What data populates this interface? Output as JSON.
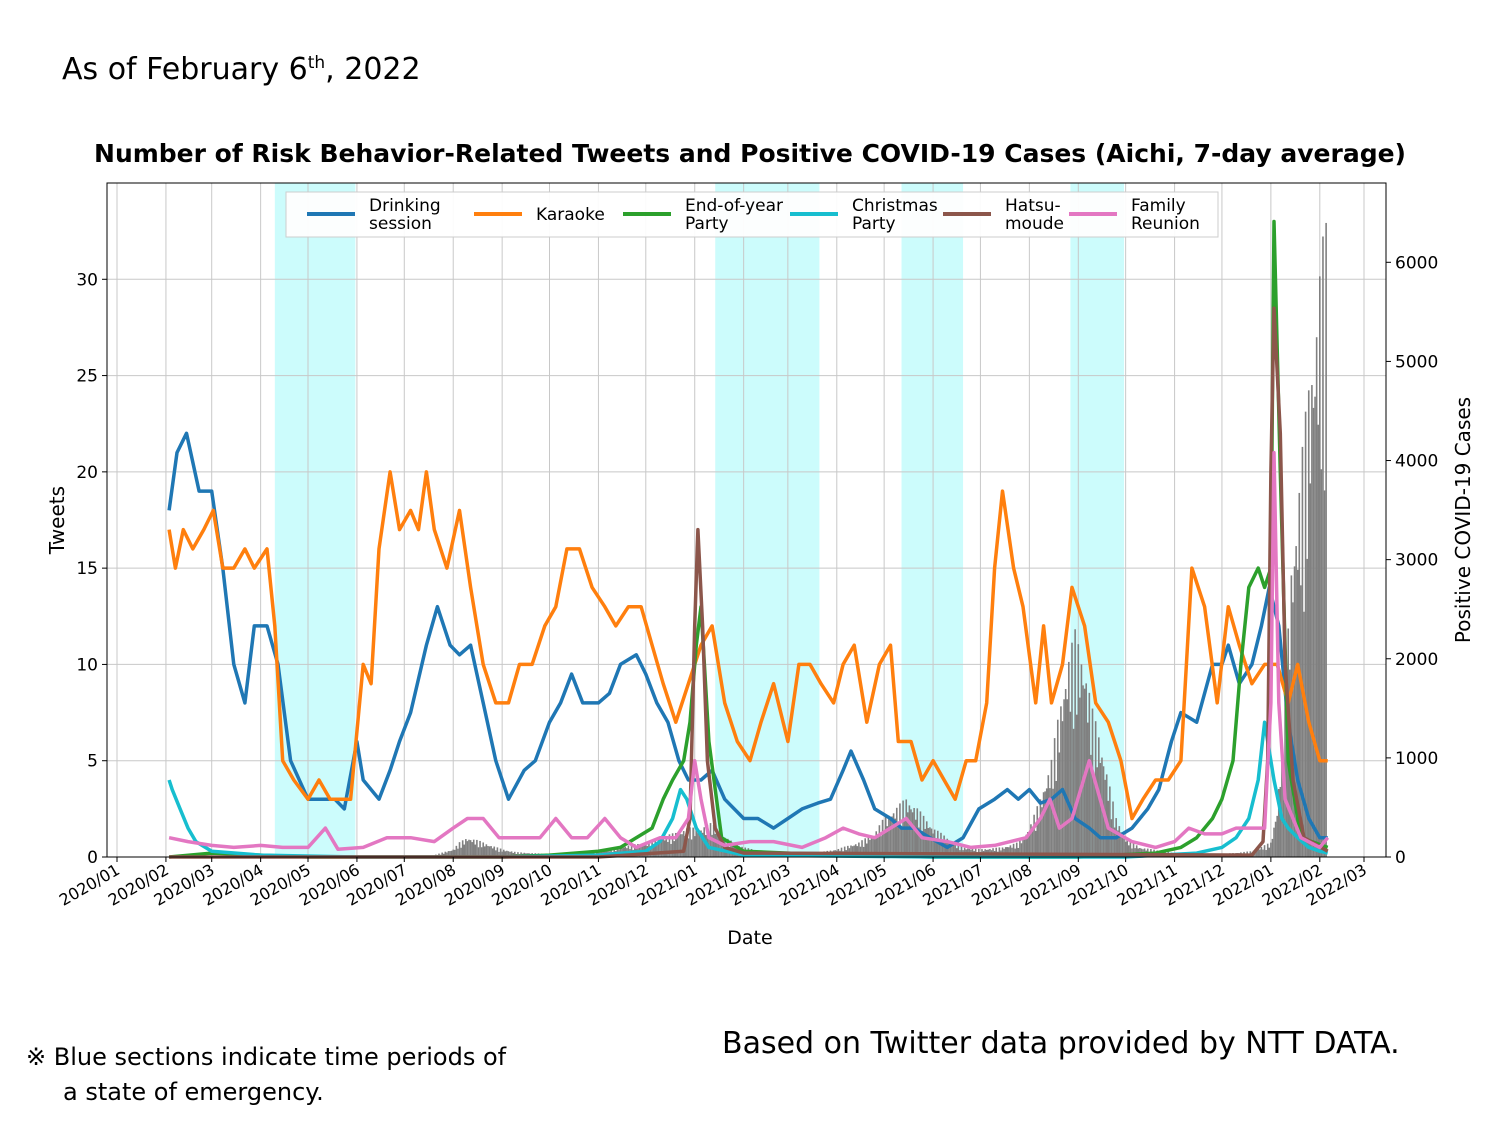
{
  "header": {
    "as_of_prefix": "As of February 6",
    "as_of_sup": "th",
    "as_of_suffix": ", 2022"
  },
  "footnote": {
    "line1": "※ Blue sections indicate time periods of",
    "line2": "a state of emergency."
  },
  "credit": "Based on Twitter data provided by NTT DATA.",
  "colors": {
    "emergency_band": "#ccfcfc",
    "bars": "#808080",
    "grid": "#c8c8c8"
  },
  "chart_data": {
    "type": "line",
    "title": "Number of Risk Behavior-Related Tweets and Positive COVID-19 Cases (Aichi, 7-day average)",
    "xlabel": "Date",
    "ylabel": "Tweets",
    "y2label": "Positive COVID-19 Cases",
    "ylim": [
      0,
      35
    ],
    "y2lim": [
      0,
      6800
    ],
    "y_ticks": [
      0,
      5,
      10,
      15,
      20,
      25,
      30
    ],
    "y2_ticks": [
      0,
      1000,
      2000,
      3000,
      4000,
      5000,
      6000
    ],
    "x_ticks": [
      "2020/01",
      "2020/02",
      "2020/03",
      "2020/04",
      "2020/05",
      "2020/06",
      "2020/07",
      "2020/08",
      "2020/09",
      "2020/10",
      "2020/11",
      "2020/12",
      "2021/01",
      "2021/02",
      "2021/03",
      "2021/04",
      "2021/05",
      "2021/06",
      "2021/07",
      "2021/08",
      "2021/09",
      "2021/10",
      "2021/11",
      "2021/12",
      "2022/01",
      "2022/02",
      "2022/03"
    ],
    "grid": true,
    "legend_position": "top",
    "emergency_periods": [
      [
        "2020-04-10",
        "2020-05-31"
      ],
      [
        "2021-01-14",
        "2021-03-21"
      ],
      [
        "2021-05-12",
        "2021-06-20"
      ],
      [
        "2021-08-27",
        "2021-09-30"
      ]
    ],
    "series": [
      {
        "name": "Drinking session",
        "color": "#1f77b4",
        "x": [
          "2020-02-03",
          "2020-02-08",
          "2020-02-14",
          "2020-02-22",
          "2020-03-01",
          "2020-03-08",
          "2020-03-15",
          "2020-03-22",
          "2020-03-28",
          "2020-04-05",
          "2020-04-12",
          "2020-04-20",
          "2020-05-01",
          "2020-05-08",
          "2020-05-12",
          "2020-05-18",
          "2020-05-24",
          "2020-06-01",
          "2020-06-05",
          "2020-06-15",
          "2020-06-22",
          "2020-06-28",
          "2020-07-05",
          "2020-07-15",
          "2020-07-22",
          "2020-07-30",
          "2020-08-05",
          "2020-08-12",
          "2020-08-20",
          "2020-08-28",
          "2020-09-05",
          "2020-09-15",
          "2020-09-22",
          "2020-10-01",
          "2020-10-08",
          "2020-10-15",
          "2020-10-22",
          "2020-11-01",
          "2020-11-08",
          "2020-11-15",
          "2020-11-25",
          "2020-12-01",
          "2020-12-08",
          "2020-12-15",
          "2020-12-22",
          "2020-12-28",
          "2021-01-05",
          "2021-01-12",
          "2021-01-20",
          "2021-02-01",
          "2021-02-10",
          "2021-02-20",
          "2021-03-01",
          "2021-03-10",
          "2021-03-20",
          "2021-03-28",
          "2021-04-05",
          "2021-04-10",
          "2021-04-18",
          "2021-04-25",
          "2021-05-05",
          "2021-05-12",
          "2021-05-20",
          "2021-05-30",
          "2021-06-10",
          "2021-06-20",
          "2021-06-30",
          "2021-07-10",
          "2021-07-18",
          "2021-07-25",
          "2021-08-01",
          "2021-08-08",
          "2021-08-15",
          "2021-08-22",
          "2021-08-30",
          "2021-09-08",
          "2021-09-15",
          "2021-09-25",
          "2021-10-05",
          "2021-10-15",
          "2021-10-22",
          "2021-10-30",
          "2021-11-05",
          "2021-11-15",
          "2021-11-25",
          "2021-12-01",
          "2021-12-05",
          "2021-12-12",
          "2021-12-20",
          "2021-12-26",
          "2021-12-31",
          "2022-01-06",
          "2022-01-12",
          "2022-01-18",
          "2022-01-25",
          "2022-02-01",
          "2022-02-06"
        ],
        "y": [
          18,
          21,
          22,
          19,
          19,
          15,
          10,
          8,
          12,
          12,
          10,
          5,
          3,
          3,
          3,
          3,
          2.5,
          6,
          4,
          3,
          4.5,
          6,
          7.5,
          11,
          13,
          11,
          10.5,
          11,
          8,
          5,
          3,
          4.5,
          5,
          7,
          8,
          9.5,
          8,
          8,
          8.5,
          10,
          10.5,
          9.5,
          8,
          7,
          5,
          4,
          4,
          4.5,
          3,
          2,
          2,
          1.5,
          2,
          2.5,
          2.8,
          3,
          4.5,
          5.5,
          4,
          2.5,
          2,
          1.5,
          1.5,
          1,
          0.5,
          1,
          2.5,
          3,
          3.5,
          3,
          3.5,
          2.8,
          3,
          3.5,
          2,
          1.5,
          1,
          1,
          1.5,
          2.5,
          3.5,
          6,
          7.5,
          7,
          10,
          10,
          11,
          9,
          10,
          12,
          14,
          12,
          7,
          4,
          2,
          1,
          1
        ]
      },
      {
        "name": "Karaoke",
        "color": "#ff7f0e",
        "x": [
          "2020-02-03",
          "2020-02-07",
          "2020-02-12",
          "2020-02-18",
          "2020-02-25",
          "2020-03-02",
          "2020-03-08",
          "2020-03-15",
          "2020-03-22",
          "2020-03-28",
          "2020-04-05",
          "2020-04-10",
          "2020-04-15",
          "2020-04-22",
          "2020-05-01",
          "2020-05-08",
          "2020-05-15",
          "2020-05-22",
          "2020-05-28",
          "2020-06-05",
          "2020-06-10",
          "2020-06-15",
          "2020-06-22",
          "2020-06-28",
          "2020-07-05",
          "2020-07-10",
          "2020-07-15",
          "2020-07-20",
          "2020-07-28",
          "2020-08-05",
          "2020-08-12",
          "2020-08-20",
          "2020-08-28",
          "2020-09-05",
          "2020-09-12",
          "2020-09-20",
          "2020-09-28",
          "2020-10-05",
          "2020-10-12",
          "2020-10-20",
          "2020-10-28",
          "2020-11-05",
          "2020-11-12",
          "2020-11-20",
          "2020-11-28",
          "2020-12-05",
          "2020-12-12",
          "2020-12-20",
          "2020-12-28",
          "2021-01-05",
          "2021-01-12",
          "2021-01-20",
          "2021-01-28",
          "2021-02-05",
          "2021-02-12",
          "2021-02-20",
          "2021-03-01",
          "2021-03-08",
          "2021-03-15",
          "2021-03-22",
          "2021-03-30",
          "2021-04-05",
          "2021-04-12",
          "2021-04-20",
          "2021-04-28",
          "2021-05-05",
          "2021-05-10",
          "2021-05-18",
          "2021-05-25",
          "2021-06-01",
          "2021-06-08",
          "2021-06-15",
          "2021-06-22",
          "2021-06-28",
          "2021-07-05",
          "2021-07-10",
          "2021-07-15",
          "2021-07-22",
          "2021-07-28",
          "2021-08-05",
          "2021-08-10",
          "2021-08-15",
          "2021-08-22",
          "2021-08-28",
          "2021-09-05",
          "2021-09-12",
          "2021-09-20",
          "2021-09-28",
          "2021-10-05",
          "2021-10-12",
          "2021-10-20",
          "2021-10-28",
          "2021-11-05",
          "2021-11-12",
          "2021-11-20",
          "2021-11-28",
          "2021-12-05",
          "2021-12-12",
          "2021-12-20",
          "2021-12-28",
          "2022-01-05",
          "2022-01-12",
          "2022-01-18",
          "2022-01-25",
          "2022-02-01",
          "2022-02-06"
        ],
        "y": [
          17,
          15,
          17,
          16,
          17,
          18,
          15,
          15,
          16,
          15,
          16,
          12,
          5,
          4,
          3,
          4,
          3,
          3,
          3,
          10,
          9,
          16,
          20,
          17,
          18,
          17,
          20,
          17,
          15,
          18,
          14,
          10,
          8,
          8,
          10,
          10,
          12,
          13,
          16,
          16,
          14,
          13,
          12,
          13,
          13,
          11,
          9,
          7,
          9,
          11,
          12,
          8,
          6,
          5,
          7,
          9,
          6,
          10,
          10,
          9,
          8,
          10,
          11,
          7,
          10,
          11,
          6,
          6,
          4,
          5,
          4,
          3,
          5,
          5,
          8,
          15,
          19,
          15,
          13,
          8,
          12,
          8,
          10,
          14,
          12,
          8,
          7,
          5,
          2,
          3,
          4,
          4,
          5,
          15,
          13,
          8,
          13,
          11,
          9,
          10,
          10,
          8,
          10,
          7,
          5,
          5
        ]
      },
      {
        "name": "End-of-year Party",
        "color": "#2ca02c",
        "x": [
          "2020-02-03",
          "2020-03-01",
          "2020-04-01",
          "2020-05-01",
          "2020-06-01",
          "2020-07-01",
          "2020-08-01",
          "2020-09-01",
          "2020-10-01",
          "2020-11-01",
          "2020-11-15",
          "2020-11-25",
          "2020-12-05",
          "2020-12-12",
          "2020-12-18",
          "2020-12-25",
          "2020-12-29",
          "2021-01-02",
          "2021-01-05",
          "2021-01-10",
          "2021-01-18",
          "2021-02-01",
          "2021-03-01",
          "2021-04-01",
          "2021-06-01",
          "2021-09-01",
          "2021-10-20",
          "2021-11-05",
          "2021-11-15",
          "2021-11-25",
          "2021-12-01",
          "2021-12-08",
          "2021-12-13",
          "2021-12-18",
          "2021-12-24",
          "2021-12-28",
          "2022-01-01",
          "2022-01-03",
          "2022-01-07",
          "2022-01-12",
          "2022-01-20",
          "2022-02-06"
        ],
        "y": [
          0,
          0.2,
          0.1,
          0,
          0,
          0,
          0,
          0,
          0.1,
          0.3,
          0.5,
          1,
          1.5,
          3,
          4,
          5,
          7,
          11,
          13,
          6,
          1,
          0.3,
          0.2,
          0.1,
          0,
          0,
          0.2,
          0.5,
          1,
          2,
          3,
          5,
          10,
          14,
          15,
          14,
          15,
          33,
          20,
          5,
          1,
          0.5
        ]
      },
      {
        "name": "Christmas Party",
        "color": "#17becf",
        "x": [
          "2020-02-03",
          "2020-02-05",
          "2020-02-10",
          "2020-02-15",
          "2020-02-20",
          "2020-03-01",
          "2020-04-01",
          "2020-06-01",
          "2020-09-01",
          "2020-11-01",
          "2020-12-01",
          "2020-12-10",
          "2020-12-18",
          "2020-12-23",
          "2020-12-27",
          "2021-01-02",
          "2021-01-10",
          "2021-02-01",
          "2021-06-01",
          "2021-10-01",
          "2021-11-15",
          "2021-12-01",
          "2021-12-10",
          "2021-12-18",
          "2021-12-24",
          "2021-12-28",
          "2022-01-03",
          "2022-01-08",
          "2022-01-12",
          "2022-01-18",
          "2022-01-25",
          "2022-02-01",
          "2022-02-06"
        ],
        "y": [
          4,
          3.5,
          2.5,
          1.5,
          0.8,
          0.3,
          0.1,
          0,
          0,
          0.1,
          0.3,
          0.8,
          2,
          3.5,
          3,
          1.5,
          0.5,
          0.1,
          0,
          0,
          0.2,
          0.5,
          1,
          2,
          4,
          7,
          4,
          2,
          1.5,
          1,
          0.5,
          0.3,
          0.2
        ]
      },
      {
        "name": "Hatsu-moude",
        "color": "#8c564b",
        "x": [
          "2020-02-03",
          "2020-11-01",
          "2020-12-25",
          "2020-12-29",
          "2021-01-01",
          "2021-01-03",
          "2021-01-06",
          "2021-01-09",
          "2021-01-14",
          "2021-01-20",
          "2021-02-01",
          "2021-12-20",
          "2021-12-27",
          "2021-12-30",
          "2022-01-01",
          "2022-01-03",
          "2022-01-07",
          "2022-01-10",
          "2022-01-15",
          "2022-01-22",
          "2022-02-06"
        ],
        "y": [
          0,
          0,
          0.3,
          2,
          12,
          17,
          12,
          5,
          1.5,
          0.5,
          0.2,
          0.1,
          0.8,
          5,
          20,
          28.5,
          22,
          10,
          4,
          1,
          0.3
        ]
      },
      {
        "name": "Family Reunion",
        "color": "#e377c2",
        "x": [
          "2020-02-03",
          "2020-02-15",
          "2020-03-01",
          "2020-03-15",
          "2020-04-01",
          "2020-04-15",
          "2020-05-01",
          "2020-05-12",
          "2020-05-20",
          "2020-06-05",
          "2020-06-20",
          "2020-07-05",
          "2020-07-20",
          "2020-08-01",
          "2020-08-10",
          "2020-08-20",
          "2020-08-30",
          "2020-09-10",
          "2020-09-25",
          "2020-10-05",
          "2020-10-15",
          "2020-10-25",
          "2020-11-05",
          "2020-11-15",
          "2020-11-25",
          "2020-12-10",
          "2020-12-20",
          "2020-12-28",
          "2021-01-01",
          "2021-01-05",
          "2021-01-10",
          "2021-01-20",
          "2021-02-05",
          "2021-02-20",
          "2021-03-10",
          "2021-03-25",
          "2021-04-05",
          "2021-04-15",
          "2021-04-25",
          "2021-05-05",
          "2021-05-15",
          "2021-05-25",
          "2021-06-10",
          "2021-06-25",
          "2021-07-10",
          "2021-07-20",
          "2021-07-30",
          "2021-08-08",
          "2021-08-14",
          "2021-08-20",
          "2021-08-28",
          "2021-09-08",
          "2021-09-20",
          "2021-10-05",
          "2021-10-20",
          "2021-11-01",
          "2021-11-10",
          "2021-11-20",
          "2021-12-01",
          "2021-12-10",
          "2021-12-20",
          "2021-12-28",
          "2022-01-01",
          "2022-01-03",
          "2022-01-06",
          "2022-01-10",
          "2022-01-20",
          "2022-02-01",
          "2022-02-06"
        ],
        "y": [
          1,
          0.8,
          0.6,
          0.5,
          0.6,
          0.5,
          0.5,
          1.5,
          0.4,
          0.5,
          1,
          1,
          0.8,
          1.5,
          2,
          2,
          1,
          1,
          1,
          2,
          1,
          1,
          2,
          1,
          0.5,
          1,
          1,
          2,
          5,
          3,
          1,
          0.6,
          0.8,
          0.8,
          0.5,
          1,
          1.5,
          1.2,
          1,
          1.5,
          2,
          1,
          0.8,
          0.5,
          0.6,
          0.8,
          1,
          2,
          3,
          1.5,
          2,
          5,
          1.5,
          0.8,
          0.5,
          0.8,
          1.5,
          1.2,
          1.2,
          1.5,
          1.5,
          1.5,
          8,
          21,
          8,
          3,
          1,
          0.5,
          1
        ]
      },
      {
        "name": "Positive COVID-19 Cases",
        "color": "#808080",
        "axis": "right",
        "type": "bar",
        "x": [
          "2020-07-20",
          "2020-08-01",
          "2020-08-05",
          "2020-08-10",
          "2020-08-15",
          "2020-08-20",
          "2020-08-25",
          "2020-09-01",
          "2020-09-10",
          "2020-10-01",
          "2020-11-01",
          "2020-11-20",
          "2020-12-01",
          "2020-12-10",
          "2020-12-20",
          "2020-12-28",
          "2021-01-05",
          "2021-01-12",
          "2021-01-20",
          "2021-02-01",
          "2021-02-15",
          "2021-03-01",
          "2021-03-15",
          "2021-04-01",
          "2021-04-15",
          "2021-04-25",
          "2021-05-01",
          "2021-05-08",
          "2021-05-15",
          "2021-05-22",
          "2021-06-01",
          "2021-06-10",
          "2021-06-20",
          "2021-07-01",
          "2021-07-15",
          "2021-07-25",
          "2021-08-01",
          "2021-08-08",
          "2021-08-15",
          "2021-08-20",
          "2021-08-25",
          "2021-08-30",
          "2021-09-05",
          "2021-09-10",
          "2021-09-15",
          "2021-09-20",
          "2021-09-25",
          "2021-10-01",
          "2021-10-10",
          "2021-11-01",
          "2021-12-01",
          "2021-12-20",
          "2022-01-01",
          "2022-01-05",
          "2022-01-08",
          "2022-01-11",
          "2022-01-14",
          "2022-01-17",
          "2022-01-20",
          "2022-01-23",
          "2022-01-26",
          "2022-01-29",
          "2022-02-01",
          "2022-02-04",
          "2022-02-06"
        ],
        "y": [
          20,
          80,
          150,
          200,
          180,
          150,
          120,
          80,
          50,
          30,
          60,
          120,
          150,
          200,
          250,
          300,
          300,
          350,
          200,
          100,
          50,
          30,
          30,
          80,
          150,
          250,
          400,
          500,
          600,
          500,
          300,
          200,
          100,
          80,
          100,
          150,
          300,
          600,
          1000,
          1500,
          2000,
          2300,
          2000,
          1500,
          1200,
          800,
          400,
          200,
          100,
          40,
          30,
          60,
          150,
          500,
          1200,
          2000,
          3000,
          3500,
          4000,
          4500,
          5000,
          5500,
          6000,
          6400,
          6500
        ]
      }
    ]
  }
}
